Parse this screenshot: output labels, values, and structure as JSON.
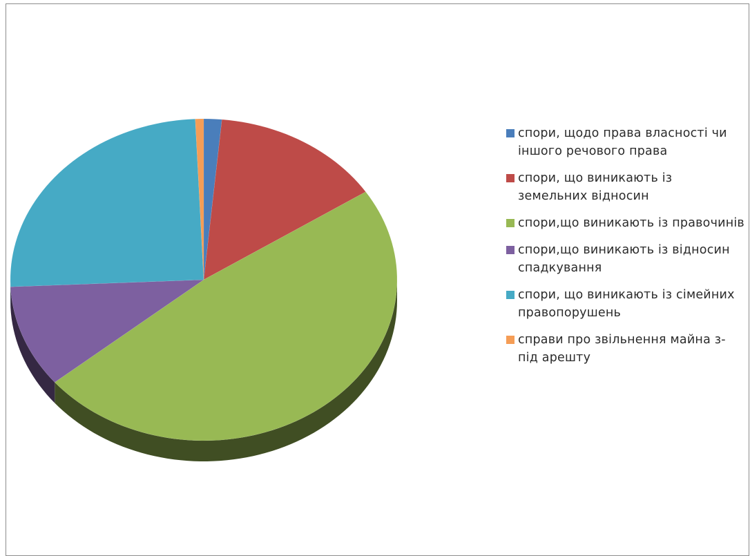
{
  "chart_data": {
    "type": "pie",
    "title": "",
    "legend_position": "right",
    "three_d": true,
    "slices": [
      {
        "label": "спори, щодо права власності чи іншого речового права",
        "value": 1.5,
        "color": "#4a7ebb"
      },
      {
        "label": "спори, що виникають із земельних відносин",
        "value": 14.3,
        "color": "#be4b48"
      },
      {
        "label": "спори,що виникають із правочинів",
        "value": 48.2,
        "color": "#98b954"
      },
      {
        "label": "спори,що виникають із відносин спадкування",
        "value": 10.3,
        "color": "#7d60a0"
      },
      {
        "label": "спори, що виникають із сімейних правопорушень",
        "value": 25.0,
        "color": "#46aac5"
      },
      {
        "label": "справи про звільнення майна з-під арешту",
        "value": 0.7,
        "color": "#f59d56"
      }
    ]
  }
}
